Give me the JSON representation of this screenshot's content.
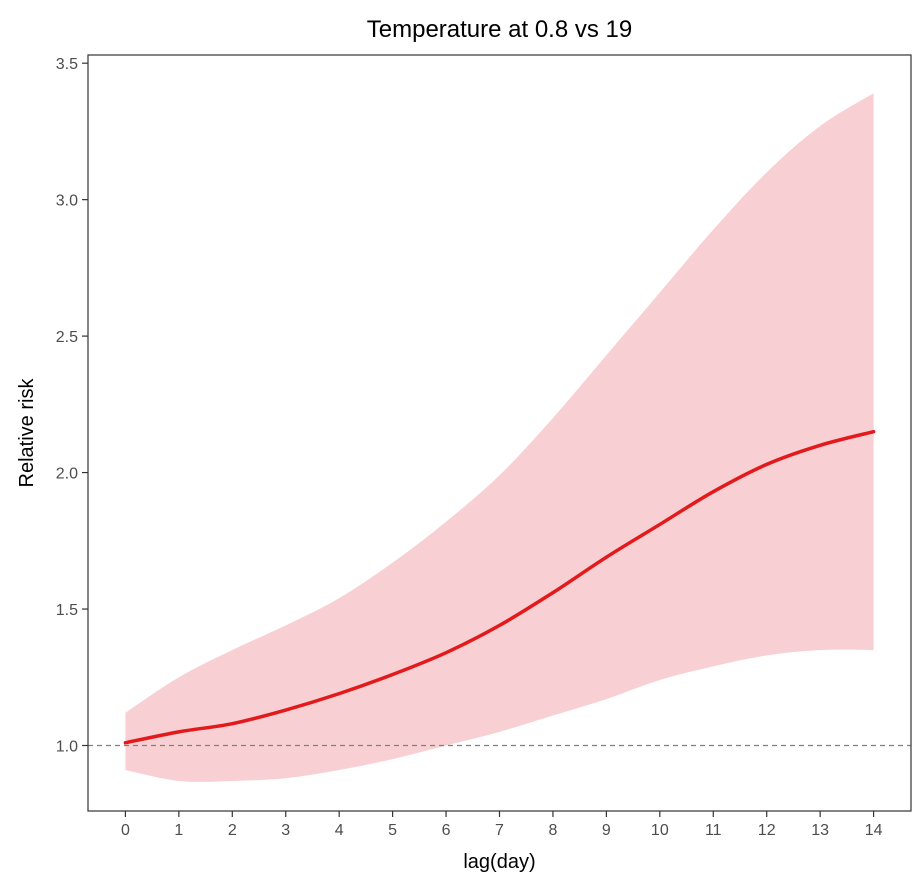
{
  "chart_data": {
    "type": "line",
    "title": "Temperature at 0.8 vs 19",
    "xlabel": "lag(day)",
    "ylabel": "Relative risk",
    "xlim": [
      -0.7,
      14.7
    ],
    "ylim": [
      0.76,
      3.53
    ],
    "x_ticks": [
      0,
      1,
      2,
      3,
      4,
      5,
      6,
      7,
      8,
      9,
      10,
      11,
      12,
      13,
      14
    ],
    "y_ticks": [
      1.0,
      1.5,
      2.0,
      2.5,
      3.0,
      3.5
    ],
    "y_tick_labels": [
      "1.0",
      "1.5",
      "2.0",
      "2.5",
      "3.0",
      "3.5"
    ],
    "x": [
      0,
      1,
      2,
      3,
      4,
      5,
      6,
      7,
      8,
      9,
      10,
      11,
      12,
      13,
      14
    ],
    "series": [
      {
        "values": [
          1.01,
          1.05,
          1.08,
          1.13,
          1.19,
          1.26,
          1.34,
          1.44,
          1.56,
          1.69,
          1.81,
          1.93,
          2.03,
          2.1,
          2.15
        ],
        "lower": [
          0.91,
          0.87,
          0.87,
          0.88,
          0.91,
          0.95,
          1.0,
          1.05,
          1.11,
          1.17,
          1.24,
          1.29,
          1.33,
          1.35,
          1.35
        ],
        "upper": [
          1.12,
          1.25,
          1.35,
          1.44,
          1.54,
          1.67,
          1.82,
          1.99,
          2.2,
          2.43,
          2.66,
          2.89,
          3.1,
          3.27,
          3.39
        ]
      }
    ],
    "reference_line": {
      "y": 1.0,
      "style": "dashed"
    },
    "grid": false,
    "colors": {
      "line": "#e31a1c",
      "band": "#f8d0d3",
      "reference": "#808080",
      "axis": "#333333"
    }
  }
}
